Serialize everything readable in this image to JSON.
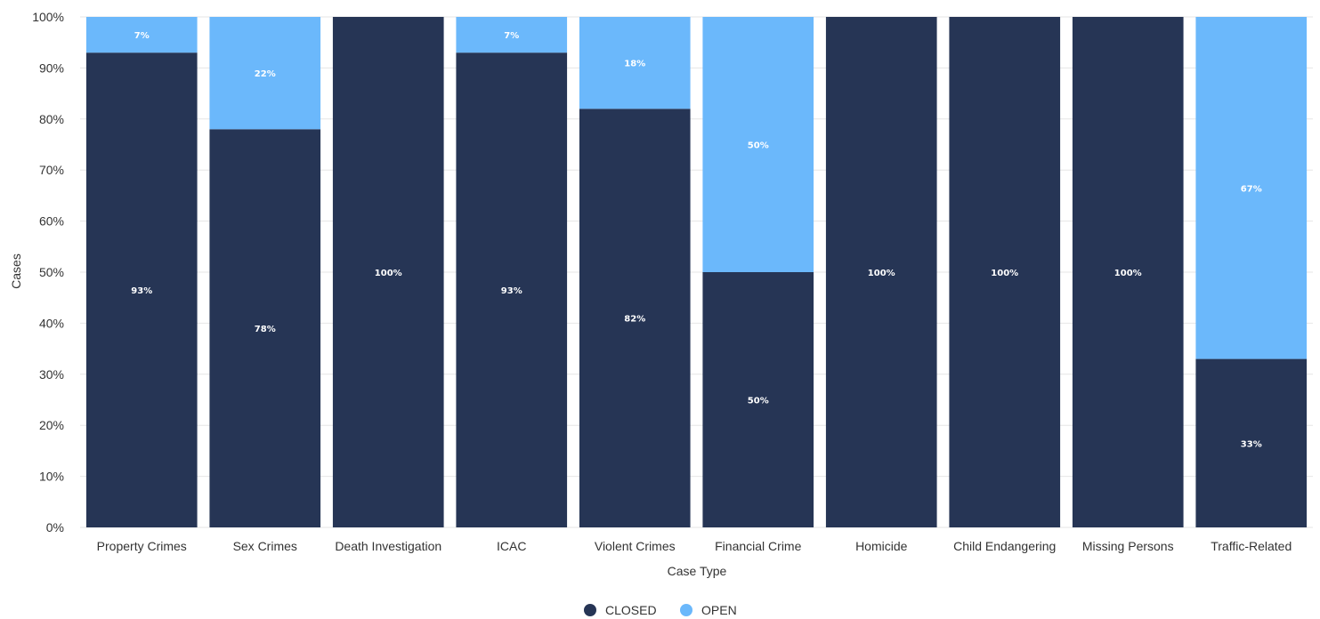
{
  "chart_data": {
    "type": "bar",
    "stacked": true,
    "title": "",
    "xlabel": "Case Type",
    "ylabel": "Cases",
    "ylim": [
      0,
      100
    ],
    "y_ticks": [
      "0%",
      "10%",
      "20%",
      "30%",
      "40%",
      "50%",
      "60%",
      "70%",
      "80%",
      "90%",
      "100%"
    ],
    "grid": true,
    "legend_position": "bottom-center",
    "categories": [
      "Property Crimes",
      "Sex Crimes",
      "Death Investigation",
      "ICAC",
      "Violent Crimes",
      "Financial Crime",
      "Homicide",
      "Child Endangering",
      "Missing Persons",
      "Traffic-Related"
    ],
    "series": [
      {
        "name": "CLOSED",
        "color": "#263555",
        "values": [
          93,
          78,
          100,
          93,
          82,
          50,
          100,
          100,
          100,
          33
        ],
        "labels": [
          "93%",
          "78%",
          "100%",
          "93%",
          "82%",
          "50%",
          "100%",
          "100%",
          "100%",
          "33%"
        ]
      },
      {
        "name": "OPEN",
        "color": "#6bb8fb",
        "values": [
          7,
          22,
          0,
          7,
          18,
          50,
          0,
          0,
          0,
          67
        ],
        "labels": [
          "7%",
          "22%",
          "",
          "7%",
          "18%",
          "50%",
          "",
          "",
          "",
          "67%"
        ]
      }
    ]
  }
}
